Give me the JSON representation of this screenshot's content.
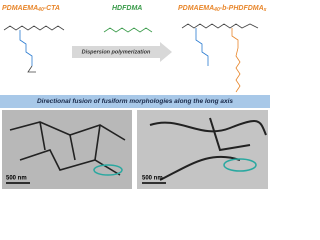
{
  "header": {
    "reactant_1": {
      "main": "PDMAEMA",
      "sub": "40",
      "rest": "-CTA"
    },
    "monomer": "HDFDMA",
    "product": {
      "main": "PDMAEMA",
      "sub": "40",
      "mid": "-b-PHDFDMA",
      "sub2": "x"
    }
  },
  "arrow_label": "Dispersion polymerization",
  "banner": "Directional fusion of fusiform morphologies along the long axis",
  "images": [
    {
      "scale_bar": "500 nm"
    },
    {
      "scale_bar": "500 nm"
    }
  ]
}
